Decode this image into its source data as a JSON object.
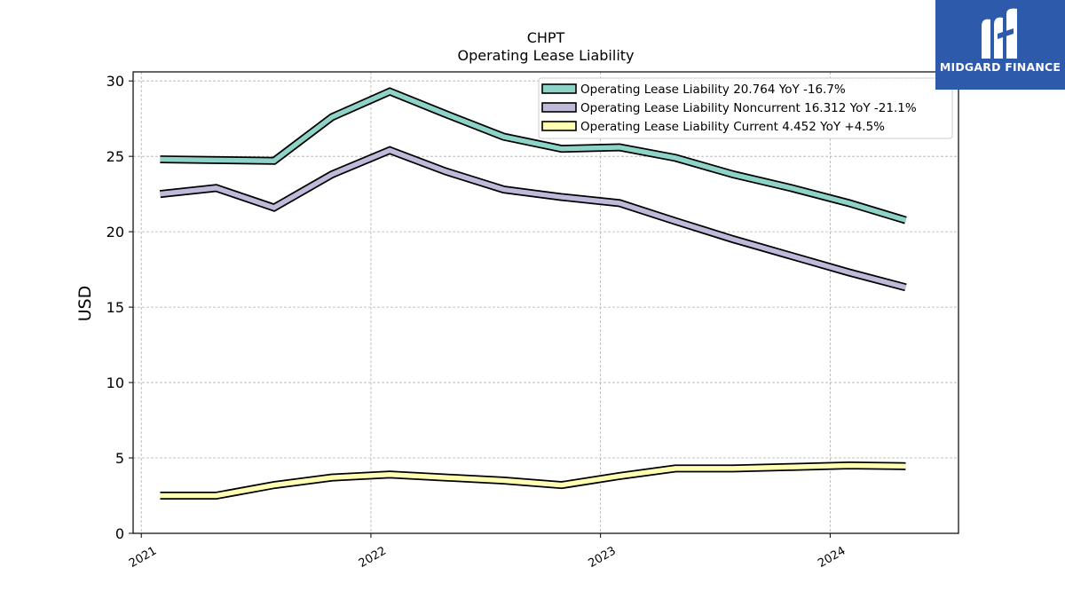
{
  "chart_data": {
    "type": "line",
    "title": "CHPT",
    "subtitle": "Operating Lease Liability",
    "ylabel": "USD",
    "xlabel": "",
    "ylim": [
      0,
      30.6
    ],
    "yticks": [
      0,
      5,
      10,
      15,
      20,
      25,
      30
    ],
    "xticks": [
      "2021",
      "2022",
      "2023",
      "2024"
    ],
    "grid": true,
    "legend_position": "top-right",
    "x": [
      "2021-01-31",
      "2021-04-30",
      "2021-07-31",
      "2021-10-31",
      "2022-01-31",
      "2022-04-30",
      "2022-07-31",
      "2022-10-31",
      "2023-01-31",
      "2023-04-30",
      "2023-07-31",
      "2023-10-31",
      "2024-01-31",
      "2024-04-30"
    ],
    "series": [
      {
        "name": "Operating Lease Liability",
        "legend_label": "Operating Lease Liability  20.764 YoY -16.7%",
        "color": "#8dd3c7",
        "values": [
          24.8,
          24.75,
          24.7,
          27.6,
          29.3,
          27.8,
          26.3,
          25.5,
          25.6,
          24.9,
          23.8,
          22.9,
          21.9,
          20.764
        ]
      },
      {
        "name": "Operating Lease Liability Noncurrent",
        "legend_label": "Operating Lease Liability Noncurrent  16.312 YoY -21.1%",
        "color": "#bebada",
        "values": [
          22.5,
          22.9,
          21.6,
          23.8,
          25.4,
          24.0,
          22.8,
          22.3,
          21.9,
          20.7,
          19.5,
          18.4,
          17.3,
          16.312
        ]
      },
      {
        "name": "Operating Lease Liability Current",
        "legend_label": "Operating Lease Liability Current  4.452 YoY +4.5%",
        "color": "#ffffb3",
        "values": [
          2.5,
          2.5,
          3.2,
          3.7,
          3.9,
          3.7,
          3.5,
          3.2,
          3.8,
          4.3,
          4.3,
          4.4,
          4.5,
          4.452
        ]
      }
    ]
  },
  "logo": {
    "text": "MIDGARD FINANCE",
    "color": "#2d5aab"
  }
}
